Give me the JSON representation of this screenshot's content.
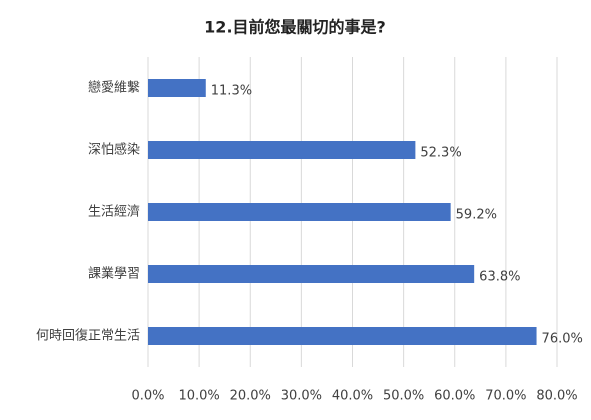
{
  "chart_data": {
    "type": "barh",
    "title": "12.目前您最關切的事是?",
    "categories": [
      "戀愛維繫",
      "深怕感染",
      "生活經濟",
      "課業學習",
      "何時回復正常生活"
    ],
    "values": [
      11.3,
      52.3,
      59.2,
      63.8,
      76.0
    ],
    "value_labels": [
      "11.3%",
      "52.3%",
      "59.2%",
      "63.8%",
      "76.0%"
    ],
    "color": "#4472c4",
    "xlim": [
      0,
      80
    ],
    "xticks": [
      {
        "value": 0,
        "label": "0.0%"
      },
      {
        "value": 10,
        "label": "10.0%"
      },
      {
        "value": 20,
        "label": "20.0%"
      },
      {
        "value": 30,
        "label": "30.0%"
      },
      {
        "value": 40,
        "label": "40.0%"
      },
      {
        "value": 50,
        "label": "50.0%"
      },
      {
        "value": 60,
        "label": "60.0%"
      },
      {
        "value": 70,
        "label": "70.0%"
      },
      {
        "value": 80,
        "label": "80.0%"
      }
    ],
    "grid": true
  }
}
